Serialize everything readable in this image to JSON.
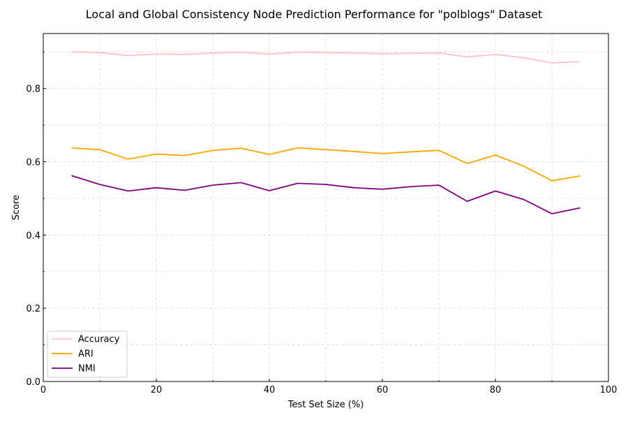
{
  "chart_data": {
    "type": "line",
    "title": "Local and Global Consistency Node Prediction Performance for \"polblogs\" Dataset",
    "xlabel": "Test Set Size (%)",
    "ylabel": "Score",
    "xlim": [
      0,
      100
    ],
    "ylim": [
      0,
      0.95
    ],
    "x_ticks": [
      0,
      20,
      40,
      60,
      80,
      100
    ],
    "y_ticks": [
      0.0,
      0.2,
      0.4,
      0.6,
      0.8
    ],
    "x_tick_labels": [
      "0",
      "20",
      "40",
      "60",
      "80",
      "100"
    ],
    "y_tick_labels": [
      "0.0",
      "0.2",
      "0.4",
      "0.6",
      "0.8"
    ],
    "grid": true,
    "legend_position": "lower-left",
    "x": [
      5,
      10,
      15,
      20,
      25,
      30,
      35,
      40,
      45,
      50,
      55,
      60,
      65,
      70,
      75,
      80,
      85,
      90,
      95
    ],
    "series": [
      {
        "name": "Accuracy",
        "color": "#ffc0cb",
        "values": [
          0.9,
          0.898,
          0.89,
          0.894,
          0.893,
          0.897,
          0.899,
          0.894,
          0.899,
          0.898,
          0.897,
          0.895,
          0.896,
          0.897,
          0.886,
          0.893,
          0.884,
          0.87,
          0.873
        ]
      },
      {
        "name": "ARI",
        "color": "#ffa500",
        "values": [
          0.638,
          0.633,
          0.607,
          0.621,
          0.617,
          0.631,
          0.637,
          0.62,
          0.638,
          0.633,
          0.628,
          0.622,
          0.627,
          0.631,
          0.595,
          0.618,
          0.588,
          0.548,
          0.561
        ]
      },
      {
        "name": "NMI",
        "color": "#800080",
        "values": [
          0.562,
          0.538,
          0.52,
          0.529,
          0.522,
          0.536,
          0.543,
          0.521,
          0.541,
          0.538,
          0.529,
          0.525,
          0.532,
          0.536,
          0.492,
          0.52,
          0.497,
          0.458,
          0.474
        ]
      }
    ]
  }
}
